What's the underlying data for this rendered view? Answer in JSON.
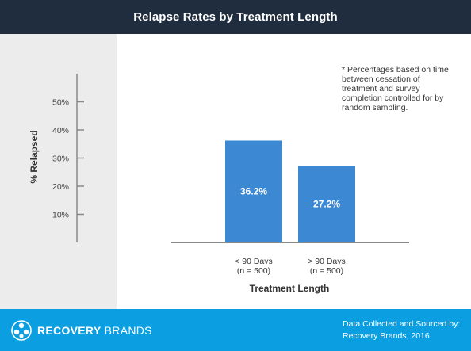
{
  "header": {
    "title": "Relapse Rates by Treatment Length"
  },
  "note": "* Percentages based on time between cessation of treatment and survey completion controlled for by random sampling.",
  "chart_data": {
    "type": "bar",
    "title": "Relapse Rates by Treatment Length",
    "xlabel": "Treatment Length",
    "ylabel": "% Relapsed",
    "ylim": [
      0,
      60
    ],
    "ytick_values": [
      10,
      20,
      30,
      40,
      50
    ],
    "yticks": [
      "10%",
      "20%",
      "30%",
      "40%",
      "50%"
    ],
    "categories": [
      {
        "line1": "< 90 Days",
        "line2": "(n = 500)"
      },
      {
        "line1": "> 90 Days",
        "line2": "(n = 500)"
      }
    ],
    "values": [
      36.2,
      27.2
    ],
    "value_labels": [
      "36.2%",
      "27.2%"
    ],
    "bar_color": "#3d88d2",
    "grid": false
  },
  "footer": {
    "brand_part1": "RECOVERY",
    "brand_part2": "BRANDS",
    "source_line1": "Data Collected and Sourced by:",
    "source_line2": "Recovery Brands, 2016"
  },
  "colors": {
    "header_bg": "#1f2d3f",
    "footer_bg": "#0b9ee0",
    "panel_bg": "#ececec"
  }
}
